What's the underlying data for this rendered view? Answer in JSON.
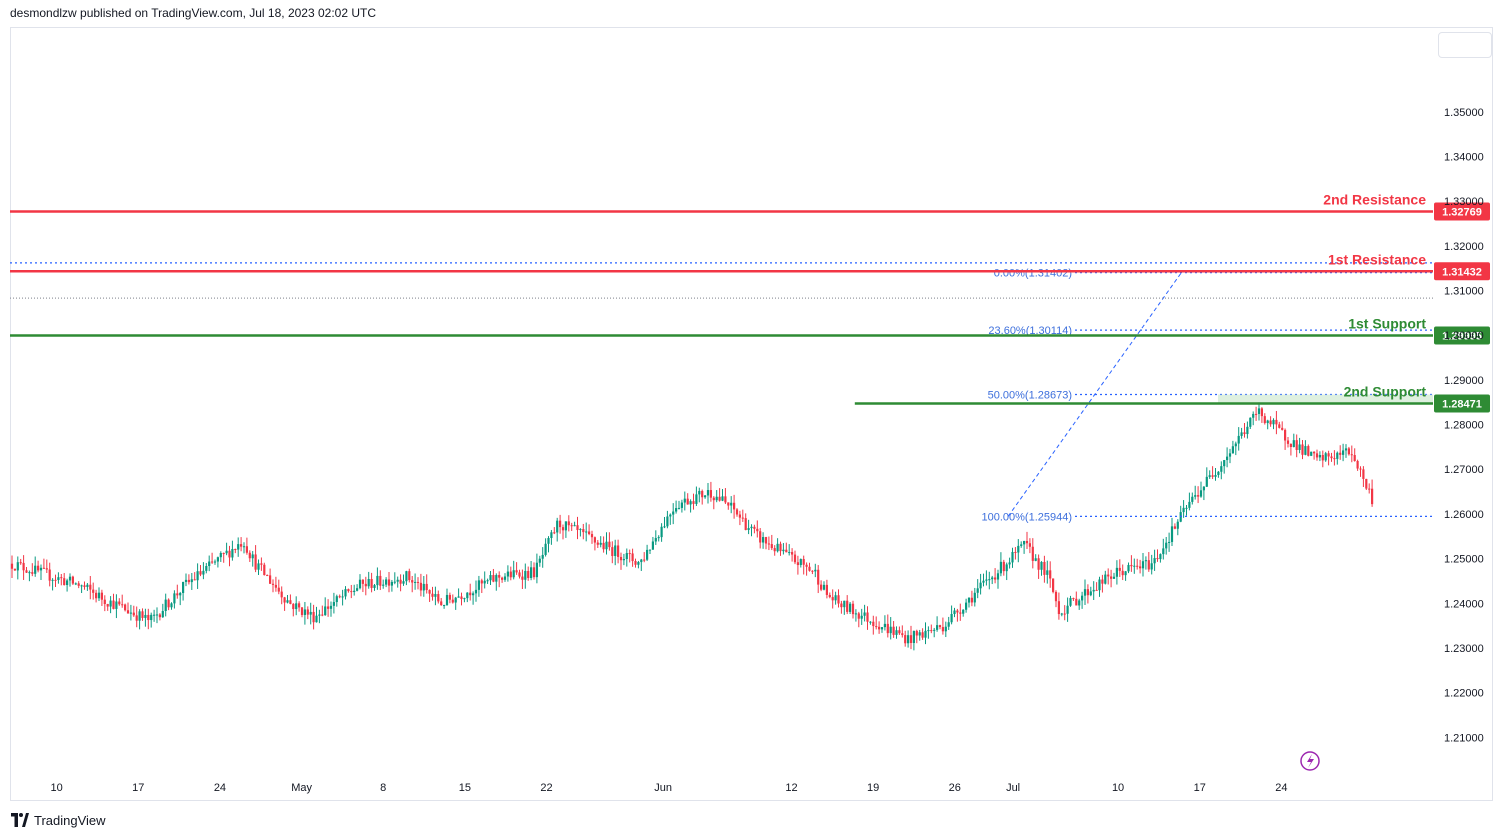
{
  "header": {
    "attribution": "desmondlzw published on TradingView.com, Jul 18, 2023 02:02 UTC"
  },
  "footer": {
    "brand": "TradingView",
    "logo_icon": "tradingview-logo-icon"
  },
  "colors": {
    "up": "#089981",
    "down": "#f23645",
    "resistance": "#f23645",
    "support": "#2e8b34",
    "fib": "#2962ff",
    "fib_text": "#3d6fdc",
    "support_zone": "#c8e6c9",
    "grid_border": "#e0e3eb",
    "axis_text": "#131722",
    "flash_icon": "#9c27b0"
  },
  "chart_data": {
    "type": "candlestick",
    "symbol_timeframe_hint": "daily",
    "title": "",
    "price_axis": {
      "ticks": [
        1.35,
        1.34,
        1.33,
        1.32,
        1.31,
        1.3,
        1.29,
        1.28,
        1.27,
        1.26,
        1.25,
        1.24,
        1.23,
        1.22,
        1.21
      ],
      "tick_labels": [
        "1.35000",
        "1.34000",
        "1.33000",
        "1.32000",
        "1.31000",
        "1.30000",
        "1.29000",
        "1.28000",
        "1.27000",
        "1.26000",
        "1.25000",
        "1.24000",
        "1.23000",
        "1.22000",
        "1.21000"
      ],
      "range": [
        1.202,
        1.369
      ]
    },
    "time_axis": {
      "tick_labels": [
        "10",
        "17",
        "24",
        "May",
        "8",
        "15",
        "22",
        "Jun",
        "12",
        "19",
        "26",
        "Jul",
        "10",
        "17",
        "24"
      ],
      "tick_dates": [
        "2023-04-10",
        "2023-04-17",
        "2023-04-24",
        "2023-05-01",
        "2023-05-08",
        "2023-05-15",
        "2023-05-22",
        "2023-06-01",
        "2023-06-12",
        "2023-06-19",
        "2023-06-26",
        "2023-07-01",
        "2023-07-10",
        "2023-07-17",
        "2023-07-24"
      ],
      "range": [
        "2023-04-06",
        "2023-08-06"
      ]
    },
    "horizontal_levels": [
      {
        "label": "2nd Resistance",
        "value": 1.32769,
        "badge": "1.32769",
        "kind": "resistance"
      },
      {
        "label": "1st Resistance",
        "value": 1.31432,
        "badge": "1.31432",
        "kind": "resistance"
      },
      {
        "label": "1st Support",
        "value": 1.29995,
        "badge": "1.29995",
        "kind": "support"
      },
      {
        "label": "2nd Support",
        "value": 1.28471,
        "badge": "1.28471",
        "kind": "support",
        "starts": "2023-06-17"
      }
    ],
    "fibonacci": [
      {
        "text": "0.00%(1.31402)",
        "value": 1.31402
      },
      {
        "text": "23.60%(1.30114)",
        "value": 1.30114
      },
      {
        "text": "50.00%(1.28673)",
        "value": 1.28673
      },
      {
        "text": "100.00%(1.25944)",
        "value": 1.25944
      }
    ],
    "fib_range": {
      "from": "2023-07-01",
      "to": "2023-07-13"
    },
    "extra_dotted_levels": [
      1.3162,
      1.3083
    ],
    "price_series": [
      [
        "2023-04-06",
        1.249
      ],
      [
        "2023-04-12",
        1.244
      ],
      [
        "2023-04-14",
        1.241
      ],
      [
        "2023-04-18",
        1.236
      ],
      [
        "2023-04-21",
        1.244
      ],
      [
        "2023-04-26",
        1.254
      ],
      [
        "2023-04-27",
        1.249
      ],
      [
        "2023-04-30",
        1.24
      ],
      [
        "2023-05-02",
        1.237
      ],
      [
        "2023-05-06",
        1.244
      ],
      [
        "2023-05-10",
        1.246
      ],
      [
        "2023-05-13",
        1.24
      ],
      [
        "2023-05-18",
        1.246
      ],
      [
        "2023-05-21",
        1.247
      ],
      [
        "2023-05-23",
        1.258
      ],
      [
        "2023-05-26",
        1.254
      ],
      [
        "2023-05-30",
        1.249
      ],
      [
        "2023-06-02",
        1.262
      ],
      [
        "2023-06-05",
        1.265
      ],
      [
        "2023-06-07",
        1.261
      ],
      [
        "2023-06-09",
        1.255
      ],
      [
        "2023-06-12",
        1.25
      ],
      [
        "2023-06-14",
        1.247
      ],
      [
        "2023-06-15",
        1.242
      ],
      [
        "2023-06-16",
        1.24
      ],
      [
        "2023-06-19",
        1.236
      ],
      [
        "2023-06-22",
        1.232
      ],
      [
        "2023-06-25",
        1.235
      ],
      [
        "2023-06-28",
        1.243
      ],
      [
        "2023-07-02",
        1.253
      ],
      [
        "2023-07-04",
        1.246
      ],
      [
        "2023-07-05",
        1.238
      ],
      [
        "2023-07-07",
        1.242
      ],
      [
        "2023-07-10",
        1.247
      ],
      [
        "2023-07-13",
        1.249
      ],
      [
        "2023-07-16",
        1.262
      ],
      [
        "2023-07-19",
        1.272
      ],
      [
        "2023-07-22",
        1.283
      ],
      [
        "2023-07-24",
        1.278
      ],
      [
        "2023-07-27",
        1.272
      ],
      [
        "2023-07-30",
        1.274
      ],
      [
        "2023-08-01",
        1.262
      ]
    ]
  }
}
